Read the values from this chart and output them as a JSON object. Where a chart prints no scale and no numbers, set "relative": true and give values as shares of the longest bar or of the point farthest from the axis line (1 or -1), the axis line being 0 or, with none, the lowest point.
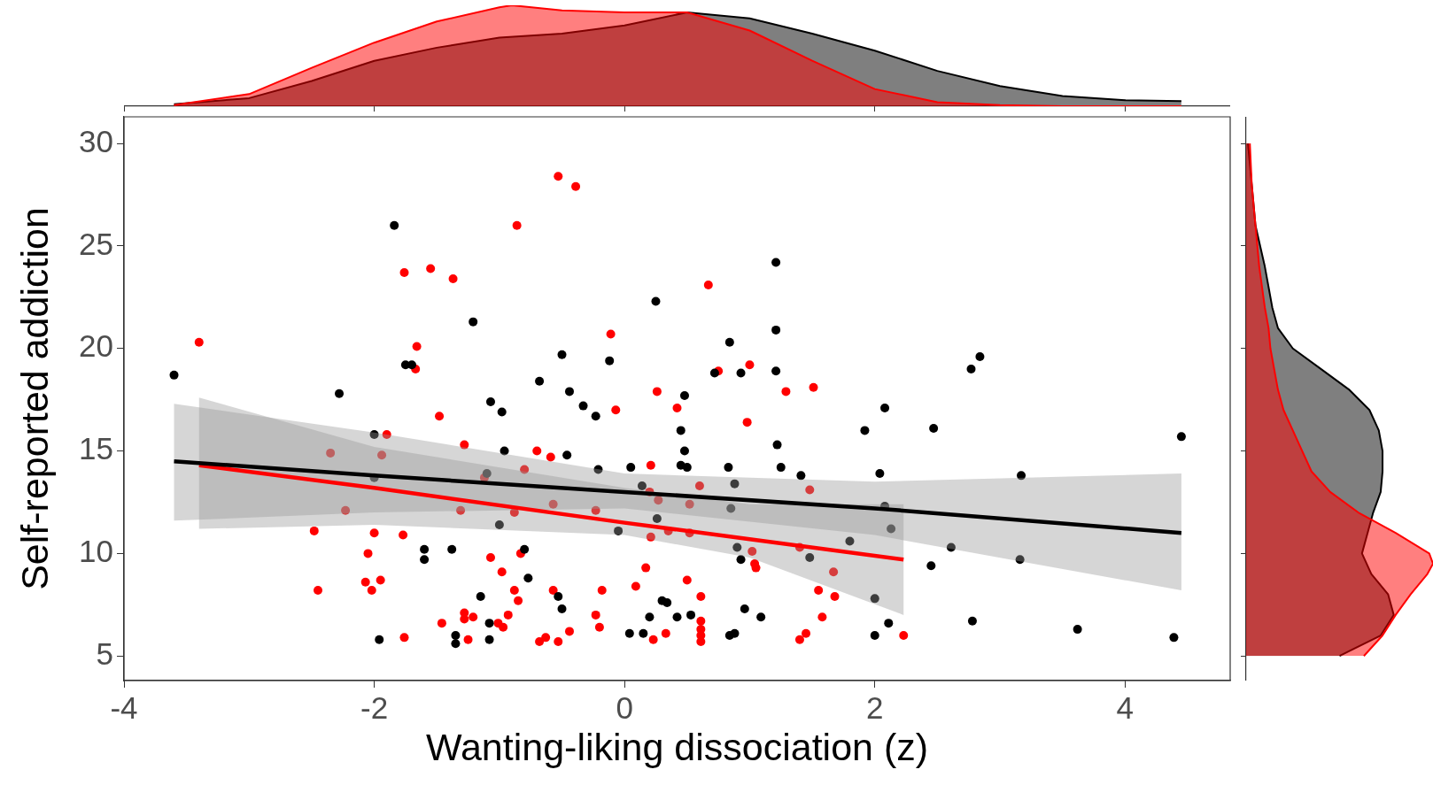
{
  "chart_data": [
    {
      "type": "scatter",
      "xlabel": "Wanting-liking dissociation (z)",
      "ylabel": "Self-reported addiction",
      "xlim": [
        -4,
        4.84
      ],
      "ylim": [
        3.8,
        31.3
      ],
      "xticks": [
        -4,
        -2,
        0,
        2,
        4
      ],
      "yticks": [
        5,
        10,
        15,
        20,
        25,
        30
      ],
      "grid": false,
      "legend": false,
      "marker": "circle",
      "series": [
        {
          "color": "#000000",
          "x": [
            -3.6,
            -2.28,
            -1.84,
            -1.75,
            -1.7,
            -2.0,
            -2.0,
            -1.6,
            -1.6,
            -1.38,
            -1.96,
            -1.35,
            -1.35,
            -1.21,
            -1.07,
            -0.98,
            -1.1,
            -1.0,
            -1.15,
            -1.08,
            -1.08,
            -0.96,
            -0.8,
            -0.77,
            -0.5,
            -0.68,
            -0.44,
            -0.33,
            -0.23,
            -0.12,
            -0.46,
            -0.53,
            -0.5,
            -0.21,
            -0.05,
            0.04,
            0.15,
            0.25,
            0.05,
            0.14,
            0.26,
            0.2,
            0.3,
            0.34,
            0.42,
            0.53,
            0.48,
            0.45,
            0.48,
            0.45,
            0.5,
            0.72,
            0.93,
            0.84,
            0.83,
            0.88,
            0.85,
            0.9,
            0.93,
            0.84,
            0.88,
            0.96,
            1.09,
            1.21,
            1.21,
            1.21,
            1.22,
            1.25,
            1.41,
            1.48,
            1.8,
            2.04,
            2.0,
            2.0,
            2.11,
            1.92,
            2.08,
            2.08,
            2.13,
            2.47,
            2.45,
            2.61,
            2.77,
            2.84,
            2.78,
            3.17,
            3.16,
            3.62,
            4.39,
            4.45
          ],
          "values": [
            18.7,
            17.8,
            26.0,
            19.2,
            19.2,
            15.8,
            13.7,
            10.2,
            9.7,
            10.2,
            5.8,
            6.0,
            5.6,
            21.3,
            17.4,
            16.9,
            13.9,
            11.4,
            7.9,
            6.6,
            5.8,
            15.0,
            10.2,
            8.8,
            19.7,
            18.4,
            17.9,
            17.2,
            16.7,
            19.4,
            14.8,
            7.9,
            7.3,
            14.1,
            11.1,
            6.1,
            6.1,
            22.3,
            14.2,
            13.3,
            11.7,
            6.9,
            7.7,
            7.6,
            6.9,
            7.0,
            17.7,
            16.0,
            15.0,
            14.3,
            14.2,
            18.8,
            18.8,
            20.3,
            14.2,
            13.4,
            12.2,
            10.3,
            9.7,
            6.0,
            6.1,
            7.3,
            6.9,
            24.2,
            20.9,
            18.9,
            15.3,
            14.2,
            13.8,
            9.8,
            10.6,
            13.9,
            7.8,
            6.0,
            6.6,
            16.0,
            17.1,
            12.3,
            11.2,
            16.1,
            9.4,
            10.3,
            19.0,
            19.6,
            6.7,
            13.8,
            9.7,
            6.3,
            5.9,
            15.7
          ]
        },
        {
          "color": "#ff0000",
          "x": [
            -3.4,
            -2.48,
            -2.45,
            -2.35,
            -2.23,
            -2.07,
            -2.05,
            -2.02,
            -2.0,
            -1.95,
            -1.94,
            -1.9,
            -1.76,
            -1.77,
            -1.76,
            -1.67,
            -1.66,
            -1.55,
            -1.48,
            -1.46,
            -1.37,
            -1.31,
            -1.28,
            -1.28,
            -1.28,
            -1.25,
            -1.21,
            -1.12,
            -1.07,
            -1.01,
            -0.98,
            -0.97,
            -0.93,
            -0.88,
            -0.88,
            -0.86,
            -0.85,
            -0.83,
            -0.8,
            -0.68,
            -0.7,
            -0.63,
            -0.59,
            -0.57,
            -0.57,
            -0.53,
            -0.53,
            -0.44,
            -0.39,
            -0.23,
            -0.23,
            -0.2,
            -0.18,
            -0.11,
            -0.07,
            0.09,
            0.17,
            0.2,
            0.21,
            0.21,
            0.23,
            0.26,
            0.27,
            0.33,
            0.35,
            0.5,
            0.42,
            0.52,
            0.52,
            0.6,
            0.61,
            0.61,
            0.61,
            0.61,
            0.61,
            0.67,
            0.75,
            0.98,
            1.0,
            1.02,
            1.05,
            1.04,
            1.29,
            1.4,
            1.4,
            1.45,
            1.48,
            1.51,
            1.55,
            1.58,
            1.67,
            1.68,
            2.23
          ],
          "values": [
            20.3,
            11.1,
            8.2,
            14.9,
            12.1,
            8.6,
            10.0,
            8.2,
            11.0,
            8.7,
            14.8,
            15.8,
            23.7,
            10.9,
            5.9,
            19.0,
            20.1,
            23.9,
            16.7,
            6.6,
            23.4,
            12.1,
            15.3,
            7.1,
            6.8,
            5.8,
            6.9,
            13.7,
            9.8,
            6.6,
            9.1,
            6.4,
            7.0,
            8.2,
            12.0,
            26.0,
            7.7,
            10.0,
            14.1,
            5.7,
            15.0,
            5.9,
            14.7,
            12.4,
            8.2,
            28.4,
            5.7,
            6.2,
            27.9,
            12.1,
            7.0,
            6.4,
            8.2,
            20.7,
            17.0,
            8.4,
            9.3,
            13.0,
            14.3,
            10.8,
            5.8,
            17.9,
            12.6,
            6.1,
            11.1,
            8.7,
            17.1,
            12.4,
            11.0,
            13.3,
            7.9,
            6.7,
            6.3,
            6.0,
            5.7,
            23.1,
            18.9,
            16.4,
            19.2,
            10.1,
            9.3,
            9.5,
            17.9,
            10.3,
            5.8,
            6.1,
            13.1,
            18.1,
            8.2,
            6.9,
            9.1,
            7.9,
            6.0
          ]
        },
        {
          "type": "line",
          "marker": "none",
          "color": "#000000",
          "x": [
            -3.6,
            -2,
            0,
            2,
            4.45
          ],
          "values": [
            14.5,
            13.8,
            13.0,
            12.2,
            11.0
          ],
          "lower": [
            11.6,
            12.0,
            12.2,
            10.9,
            8.2
          ],
          "upper": [
            17.3,
            15.9,
            13.9,
            13.5,
            13.9
          ]
        },
        {
          "type": "line",
          "marker": "none",
          "color": "#ff0000",
          "x": [
            -3.4,
            -2,
            0,
            1,
            2.23
          ],
          "values": [
            14.3,
            13.2,
            11.5,
            10.7,
            9.7
          ],
          "lower": [
            11.2,
            11.4,
            10.9,
            9.8,
            7.0
          ],
          "upper": [
            17.6,
            15.2,
            13.2,
            12.4,
            12.4
          ]
        }
      ]
    },
    {
      "type": "area",
      "relative": true,
      "xlim": [
        -4,
        4.84
      ],
      "xticks": [
        -4,
        -2,
        0,
        2,
        4
      ],
      "tick_labels": false,
      "legend": false,
      "grid": false,
      "series": [
        {
          "color": "#000000",
          "x": [
            -3.6,
            -3,
            -2.5,
            -2,
            -1.5,
            -1,
            -0.5,
            0,
            0.5,
            1,
            1.5,
            2,
            2.5,
            3,
            3.5,
            4,
            4.45
          ],
          "values": [
            0.02,
            0.08,
            0.25,
            0.45,
            0.58,
            0.68,
            0.72,
            0.8,
            0.93,
            0.87,
            0.72,
            0.55,
            0.35,
            0.2,
            0.1,
            0.06,
            0.05
          ]
        },
        {
          "color": "#ff0000",
          "x": [
            -3.6,
            -3,
            -2.5,
            -2,
            -1.5,
            -1,
            -0.9,
            -0.5,
            0,
            0.5,
            1,
            1.5,
            2,
            2.5,
            3,
            3.5,
            4.45
          ],
          "values": [
            0.01,
            0.12,
            0.38,
            0.63,
            0.84,
            0.98,
            1.0,
            0.95,
            0.93,
            0.93,
            0.75,
            0.45,
            0.17,
            0.04,
            0.01,
            0.0,
            0.0
          ]
        }
      ]
    },
    {
      "type": "area",
      "relative": true,
      "orientation": "horizontal",
      "ylim": [
        3.8,
        31.3
      ],
      "yticks": [
        5,
        10,
        15,
        20,
        25,
        30
      ],
      "tick_labels": false,
      "legend": false,
      "grid": false,
      "series": [
        {
          "color": "#000000",
          "x": [
            5,
            6,
            7,
            8,
            9,
            10,
            11,
            12,
            13,
            14,
            15,
            16,
            17,
            18,
            19,
            20,
            21,
            22,
            23,
            24,
            26,
            28,
            30
          ],
          "values": [
            0.5,
            0.72,
            0.79,
            0.76,
            0.67,
            0.62,
            0.65,
            0.68,
            0.72,
            0.73,
            0.73,
            0.71,
            0.66,
            0.55,
            0.4,
            0.25,
            0.17,
            0.14,
            0.12,
            0.1,
            0.05,
            0.03,
            0.01
          ]
        },
        {
          "color": "#ff0000",
          "x": [
            5,
            6,
            7,
            8,
            9,
            9.5,
            10,
            11,
            12,
            13,
            14,
            15,
            16,
            17,
            18,
            19,
            20,
            21,
            22,
            24,
            26,
            28,
            30
          ],
          "values": [
            0.63,
            0.73,
            0.8,
            0.88,
            0.97,
            1.0,
            0.98,
            0.8,
            0.6,
            0.45,
            0.35,
            0.3,
            0.25,
            0.2,
            0.17,
            0.15,
            0.13,
            0.12,
            0.1,
            0.07,
            0.05,
            0.03,
            0.02
          ]
        }
      ]
    }
  ]
}
